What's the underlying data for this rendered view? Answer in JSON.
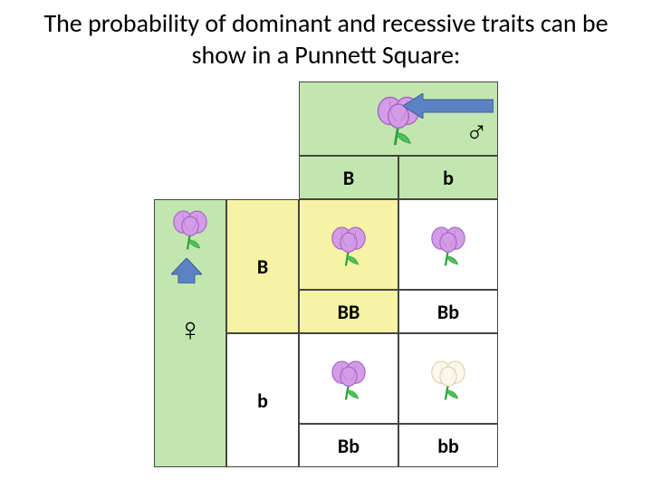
{
  "title": "The probability of dominant and recessive traits can be show in a Punnett Square:",
  "colors": {
    "green_bg": "#c2e6b0",
    "yellow_bg": "#f6f3a5",
    "white_bg": "#ffffff",
    "border": "#444444",
    "text": "#000000",
    "flower_purple_light": "#d39ce6",
    "flower_purple_dark": "#a864c2",
    "flower_white_light": "#fdf8e8",
    "flower_white_dark": "#d8d2b8",
    "stem_green": "#2aa33a",
    "leaf_green": "#4fc15a",
    "arrow_fill": "#5b82c3",
    "arrow_stroke": "#3b5d99"
  },
  "symbols": {
    "male": "♂",
    "female": "♀"
  },
  "alleles": {
    "male": [
      "B",
      "b"
    ],
    "female": [
      "B",
      "b"
    ]
  },
  "cross": [
    [
      {
        "genotype": "BB",
        "flower_color": "purple",
        "bg": "yellow"
      },
      {
        "genotype": "Bb",
        "flower_color": "purple",
        "bg": "white"
      }
    ],
    [
      {
        "genotype": "Bb",
        "flower_color": "purple",
        "bg": "white"
      },
      {
        "genotype": "bb",
        "flower_color": "white",
        "bg": "white"
      }
    ]
  ],
  "parents": {
    "male": {
      "flower_color": "purple"
    },
    "female": {
      "flower_color": "purple"
    }
  },
  "fonts": {
    "title_size_pt": 28,
    "label_size_pt": 22
  }
}
